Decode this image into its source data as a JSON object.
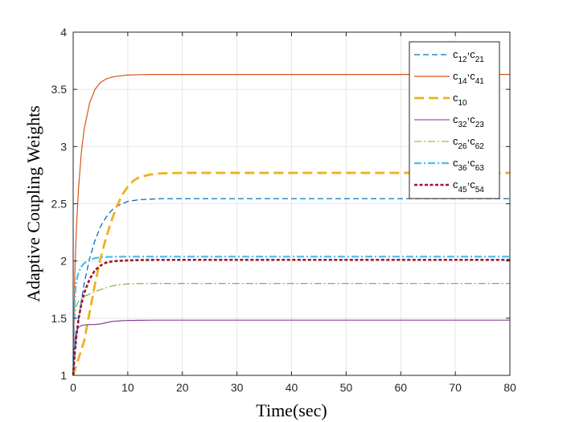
{
  "chart_data": {
    "type": "line",
    "xlabel": "Time(sec)",
    "ylabel": "Adaptive Coupling Weights",
    "xlim": [
      0,
      80
    ],
    "ylim": [
      1,
      4
    ],
    "xticks": [
      0,
      10,
      20,
      30,
      40,
      50,
      60,
      70,
      80
    ],
    "yticks": [
      1,
      1.5,
      2,
      2.5,
      3,
      3.5,
      4
    ],
    "ytick_labels": [
      "1",
      "1.5",
      "2",
      "2.5",
      "3",
      "3.5",
      "4"
    ],
    "grid": true,
    "legend_position": "top-right",
    "series": [
      {
        "name_base": "c",
        "name_sub1": "12",
        "name_sep": ",",
        "name_base2": "c",
        "name_sub2": "21",
        "color": "#0072BD",
        "dash": "dashed",
        "width": 1.3,
        "x": [
          0,
          0.5,
          1,
          2,
          3,
          4,
          5,
          6,
          7,
          8,
          10,
          12,
          14,
          16,
          20,
          30,
          40,
          60,
          80
        ],
        "y": [
          1.0,
          1.3,
          1.5,
          1.8,
          2.02,
          2.18,
          2.3,
          2.38,
          2.44,
          2.48,
          2.52,
          2.535,
          2.54,
          2.545,
          2.545,
          2.545,
          2.545,
          2.545,
          2.545
        ]
      },
      {
        "name_base": "c",
        "name_sub1": "14",
        "name_sep": ",",
        "name_base2": "c",
        "name_sub2": "41",
        "color": "#D95319",
        "dash": "solid",
        "width": 1.2,
        "x": [
          0,
          0.3,
          0.6,
          1,
          1.5,
          2,
          3,
          4,
          5,
          6,
          7,
          8,
          9,
          10,
          12,
          14,
          20,
          40,
          80
        ],
        "y": [
          1.0,
          1.9,
          2.3,
          2.65,
          2.95,
          3.15,
          3.38,
          3.5,
          3.56,
          3.59,
          3.605,
          3.615,
          3.62,
          3.625,
          3.628,
          3.63,
          3.63,
          3.63,
          3.63
        ]
      },
      {
        "name_base": "c",
        "name_sub1": "10",
        "name_sep": "",
        "name_base2": "",
        "name_sub2": "",
        "color": "#EDB120",
        "dash": "bigdash",
        "width": 2.8,
        "x": [
          0,
          1,
          2,
          3,
          4,
          5,
          6,
          7,
          8,
          9,
          10,
          11,
          12,
          14,
          16,
          20,
          30,
          50,
          80
        ],
        "y": [
          1.0,
          1.15,
          1.3,
          1.55,
          1.8,
          2.02,
          2.2,
          2.35,
          2.48,
          2.58,
          2.65,
          2.7,
          2.73,
          2.755,
          2.765,
          2.77,
          2.77,
          2.77,
          2.77
        ]
      },
      {
        "name_base": "c",
        "name_sub1": "32",
        "name_sep": ",",
        "name_base2": "c",
        "name_sub2": "23",
        "color": "#7E2F8E",
        "dash": "solid",
        "width": 1.1,
        "x": [
          0,
          0.2,
          0.5,
          1,
          1.5,
          2,
          3,
          4,
          5,
          6,
          7,
          8,
          9,
          10,
          12,
          15,
          20,
          40,
          80
        ],
        "y": [
          1.0,
          1.25,
          1.38,
          1.42,
          1.435,
          1.44,
          1.445,
          1.445,
          1.45,
          1.46,
          1.47,
          1.475,
          1.478,
          1.48,
          1.482,
          1.483,
          1.483,
          1.483,
          1.483
        ]
      },
      {
        "name_base": "c",
        "name_sub1": "26",
        "name_sep": ",",
        "name_base2": "c",
        "name_sub2": "62",
        "color": "#77AC30",
        "dash": "dashdot",
        "width": 1.1,
        "x": [
          0,
          0.2,
          0.5,
          1,
          2,
          3,
          4,
          5,
          6,
          7,
          8,
          9,
          10,
          12,
          15,
          20,
          40,
          80
        ],
        "y": [
          1.0,
          1.45,
          1.6,
          1.65,
          1.69,
          1.71,
          1.73,
          1.75,
          1.765,
          1.78,
          1.79,
          1.795,
          1.8,
          1.802,
          1.803,
          1.803,
          1.803,
          1.803
        ]
      },
      {
        "name_base": "c",
        "name_sub1": "36",
        "name_sep": ",",
        "name_base2": "c",
        "name_sub2": "63",
        "color": "#4DBEEE",
        "dash": "dashdot",
        "width": 2.3,
        "x": [
          0,
          0.2,
          0.4,
          0.7,
          1,
          1.5,
          2,
          3,
          4,
          5,
          6,
          8,
          10,
          15,
          20,
          40,
          80
        ],
        "y": [
          1.0,
          1.55,
          1.75,
          1.85,
          1.9,
          1.95,
          1.98,
          2.01,
          2.025,
          2.032,
          2.035,
          2.037,
          2.038,
          2.038,
          2.038,
          2.038,
          2.038
        ]
      },
      {
        "name_base": "c",
        "name_sub1": "45",
        "name_sep": ",",
        "name_base2": "c",
        "name_sub2": "54",
        "color": "#A2142F",
        "dash": "dotted",
        "width": 2.6,
        "x": [
          0,
          0.3,
          0.6,
          1,
          1.5,
          2,
          3,
          4,
          5,
          6,
          7,
          8,
          10,
          12,
          15,
          20,
          40,
          80
        ],
        "y": [
          1.0,
          1.2,
          1.35,
          1.5,
          1.62,
          1.72,
          1.84,
          1.92,
          1.96,
          1.985,
          1.995,
          2.0,
          2.005,
          2.008,
          2.01,
          2.01,
          2.01,
          2.01
        ]
      }
    ]
  }
}
